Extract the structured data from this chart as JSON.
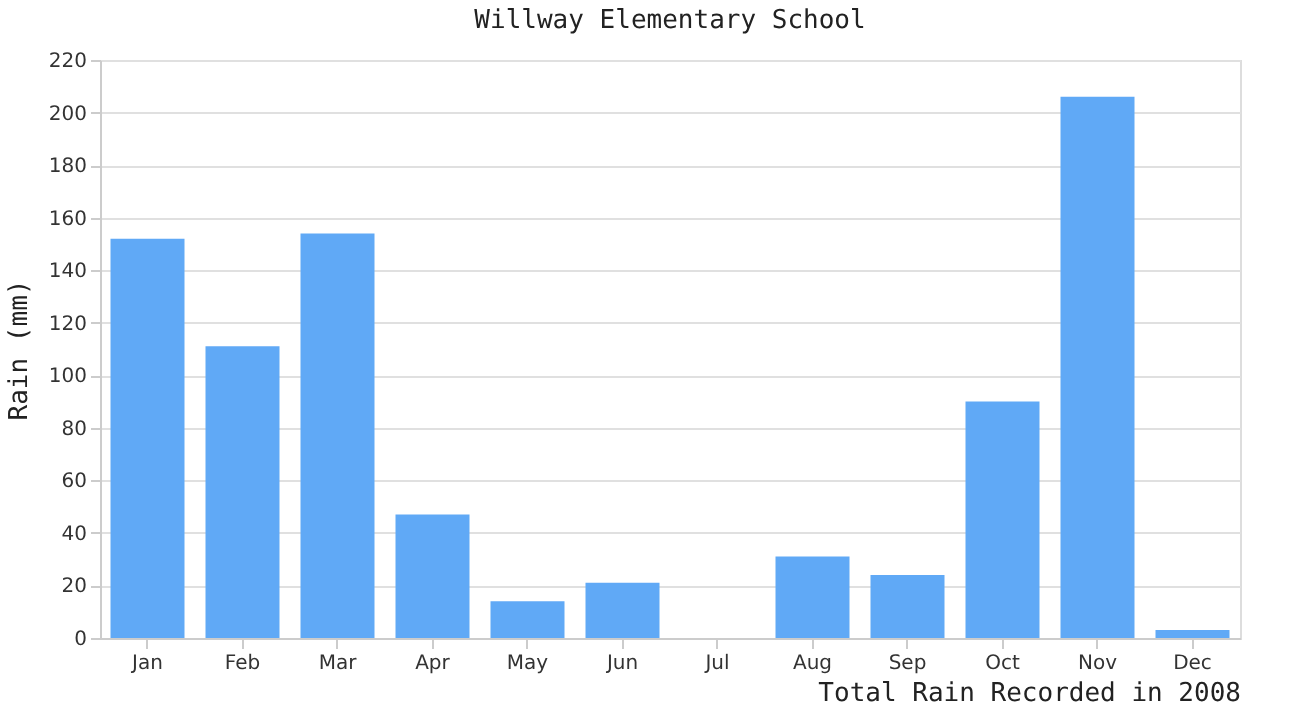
{
  "chart_data": {
    "type": "bar",
    "title": "Willway Elementary School",
    "xlabel": "Total Rain Recorded in 2008",
    "ylabel": "Rain (mm)",
    "categories": [
      "Jan",
      "Feb",
      "Mar",
      "Apr",
      "May",
      "Jun",
      "Jul",
      "Aug",
      "Sep",
      "Oct",
      "Nov",
      "Dec"
    ],
    "values": [
      152,
      111,
      154,
      47,
      14,
      21,
      0,
      31,
      24,
      90,
      206,
      3
    ],
    "color": "#60a9f6",
    "ylim": [
      0,
      220
    ],
    "yticks": [
      0,
      20,
      40,
      60,
      80,
      100,
      120,
      140,
      160,
      180,
      200,
      220
    ],
    "grid": "y"
  }
}
